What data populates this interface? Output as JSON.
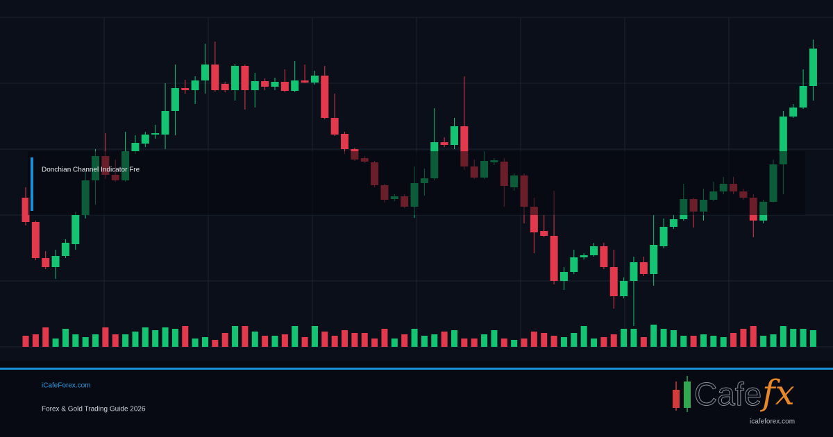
{
  "chart_data": {
    "type": "candlestick",
    "open": [
      215,
      180,
      128,
      115,
      131,
      148,
      190,
      240,
      275,
      248,
      240,
      282,
      293,
      306,
      306,
      340,
      373,
      370,
      384,
      407,
      379,
      370,
      405,
      370,
      383,
      375,
      382,
      369,
      384,
      381,
      391,
      330,
      307,
      285,
      272,
      266,
      233,
      213,
      217,
      202,
      236,
      243,
      295,
      291,
      318,
      260,
      244,
      266,
      267,
      230,
      247,
      202,
      167,
      160,
      95,
      108,
      129,
      132,
      145,
      115,
      73,
      95,
      122,
      105,
      145,
      173,
      184,
      213,
      195,
      212,
      224,
      235,
      224,
      215,
      182,
      209,
      263,
      332,
      345,
      376
    ],
    "high": [
      230,
      182,
      138,
      140,
      155,
      195,
      252,
      285,
      308,
      270,
      310,
      305,
      310,
      320,
      380,
      407,
      385,
      390,
      437,
      440,
      382,
      408,
      407,
      395,
      387,
      388,
      400,
      412,
      407,
      398,
      405,
      365,
      310,
      287,
      275,
      268,
      235,
      220,
      220,
      260,
      257,
      344,
      302,
      330,
      390,
      270,
      282,
      272,
      272,
      250,
      250,
      215,
      190,
      225,
      115,
      140,
      135,
      150,
      150,
      140,
      100,
      130,
      130,
      190,
      185,
      190,
      235,
      215,
      228,
      238,
      245,
      245,
      228,
      220,
      212,
      270,
      340,
      350,
      400,
      443
    ],
    "low": [
      175,
      125,
      112,
      98,
      128,
      140,
      185,
      205,
      242,
      238,
      238,
      278,
      288,
      300,
      285,
      305,
      365,
      350,
      365,
      368,
      367,
      355,
      342,
      345,
      370,
      370,
      367,
      367,
      380,
      378,
      328,
      304,
      278,
      268,
      265,
      230,
      208,
      210,
      200,
      186,
      218,
      240,
      288,
      285,
      255,
      242,
      242,
      262,
      202,
      225,
      178,
      135,
      158,
      90,
      82,
      105,
      126,
      130,
      112,
      55,
      70,
      30,
      102,
      88,
      142,
      170,
      182,
      172,
      182,
      210,
      220,
      220,
      212,
      158,
      178,
      208,
      220,
      330,
      343,
      355
    ],
    "close": [
      180,
      128,
      115,
      131,
      150,
      190,
      240,
      275,
      248,
      240,
      282,
      294,
      306,
      308,
      340,
      373,
      370,
      384,
      407,
      370,
      370,
      405,
      370,
      383,
      375,
      382,
      369,
      384,
      381,
      391,
      330,
      306,
      285,
      270,
      267,
      233,
      212,
      217,
      202,
      236,
      243,
      295,
      291,
      318,
      260,
      244,
      268,
      269,
      232,
      247,
      202,
      165,
      160,
      95,
      108,
      129,
      132,
      145,
      115,
      73,
      95,
      122,
      105,
      147,
      173,
      184,
      213,
      195,
      212,
      224,
      235,
      224,
      215,
      182,
      209,
      263,
      332,
      345,
      376,
      430
    ],
    "volume": [
      16,
      18,
      28,
      12,
      26,
      18,
      14,
      18,
      28,
      18,
      18,
      22,
      28,
      24,
      28,
      26,
      30,
      12,
      14,
      10,
      20,
      30,
      30,
      22,
      16,
      16,
      18,
      30,
      14,
      30,
      22,
      16,
      24,
      20,
      20,
      12,
      26,
      12,
      18,
      26,
      16,
      18,
      22,
      24,
      12,
      12,
      18,
      24,
      12,
      10,
      12,
      22,
      20,
      16,
      14,
      20,
      30,
      12,
      14,
      18,
      26,
      26,
      14,
      32,
      26,
      24,
      16,
      16,
      18,
      16,
      14,
      20,
      26,
      30,
      16,
      18,
      30,
      26,
      26,
      24
    ],
    "up_color": "#14c472",
    "down_color": "#e23a4c",
    "ylim": [
      0,
      475
    ],
    "yticks": [
      0,
      95,
      190,
      285,
      380,
      475
    ],
    "grid": true,
    "overlay_label": "Donchian Channel Indicator Fre"
  },
  "footer": {
    "site": "iCafeForex.com",
    "subtitle": "Forex & Gold Trading Guide 2026",
    "logo_word": "Cafe",
    "logo_fx": "fx",
    "logo_url": "icafeforex.com"
  }
}
